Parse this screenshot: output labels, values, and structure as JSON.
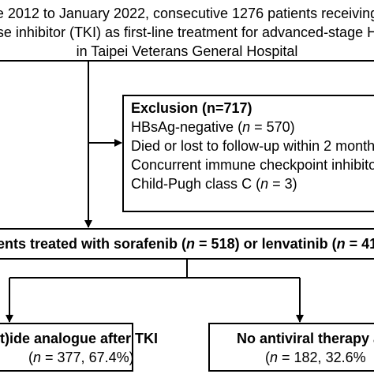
{
  "top_box": {
    "line1": "e 2012 to January 2022, consecutive 1276 patients receiving",
    "line2": "se inhibitor (TKI) as first-line treatment for advanced-stage H",
    "line3": "in Taipei Veterans General Hospital"
  },
  "exclusion_box": {
    "title": "Exclusion (n=717)",
    "items": [
      {
        "text": "HBsAg-negative (",
        "italic": "n",
        "suffix": " = 570)"
      },
      {
        "text": "Died or lost to follow-up within 2 month"
      },
      {
        "text": "Concurrent immune checkpoint inhibito"
      },
      {
        "text": "Child-Pugh class C (",
        "italic": "n",
        "suffix": " = 3)"
      }
    ]
  },
  "middle_box": {
    "prefix": "ents treated with sorafenib (",
    "n1_italic": "n",
    "mid": " = 518) or lenvatinib (",
    "n2_italic": "n",
    "tail": " = 41"
  },
  "left_box": {
    "title": "(t)ide analogue after TKI",
    "stat_open": "(",
    "stat_italic": "n",
    "stat_rest": " = 377, 67.4%)"
  },
  "right_box": {
    "title": "No antiviral therapy a",
    "stat_open": "(",
    "stat_italic": "n",
    "stat_rest": " = 182, 32.6%"
  }
}
